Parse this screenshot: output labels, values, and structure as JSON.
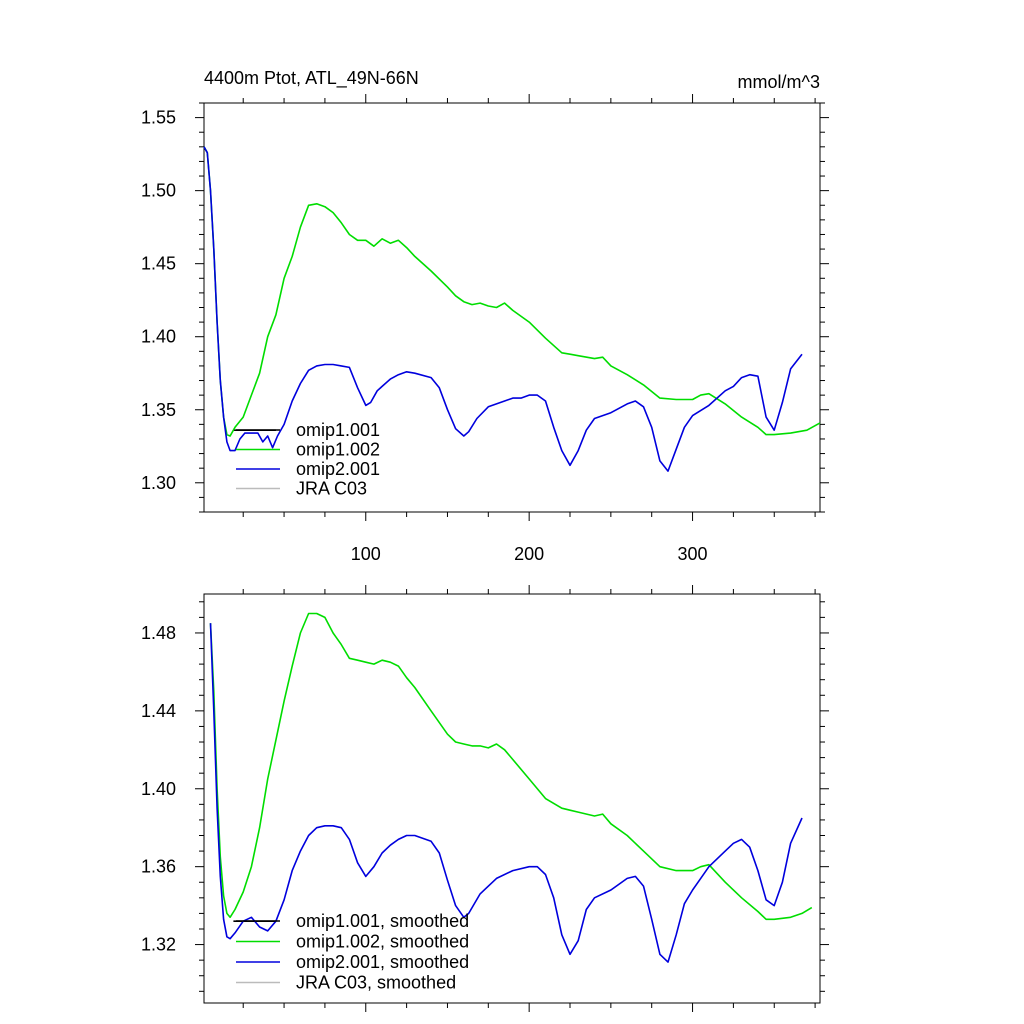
{
  "header": {
    "title": "4400m Ptot, ATL_49N-66N",
    "units": "mmol/m^3"
  },
  "colors": {
    "omip1_001": "#000000",
    "omip1_002": "#00dd00",
    "omip2_001": "#0000dd",
    "jra": "#bbbbbb",
    "axis": "#000000"
  },
  "chart_data": [
    {
      "type": "line",
      "title": "4400m Ptot, ATL_49N-66N",
      "units": "mmol/m^3",
      "xlim": [
        1,
        378
      ],
      "ylim": [
        1.28,
        1.56
      ],
      "x_ticks": [
        100,
        200,
        300
      ],
      "y_ticks": [
        1.3,
        1.35,
        1.4,
        1.45,
        1.5,
        1.55
      ],
      "y_tick_labels": [
        "1.30",
        "1.35",
        "1.40",
        "1.45",
        "1.50",
        "1.55"
      ],
      "x_tick_labels": [
        "100",
        "200",
        "300"
      ],
      "legend": [
        "omip1.001",
        "omip1.002",
        "omip2.001",
        "JRA C03"
      ],
      "legend_position": "bottom-left",
      "series": [
        {
          "name": "omip1.001",
          "x": [
            19,
            45
          ],
          "y": [
            1.336,
            1.336
          ]
        },
        {
          "name": "omip1.002",
          "x": [
            1,
            3,
            5,
            7,
            9,
            11,
            13,
            15,
            17,
            20,
            25,
            30,
            35,
            40,
            45,
            50,
            55,
            60,
            65,
            70,
            75,
            80,
            85,
            90,
            95,
            100,
            105,
            110,
            115,
            120,
            125,
            130,
            140,
            150,
            155,
            160,
            165,
            170,
            175,
            180,
            185,
            190,
            200,
            210,
            220,
            225,
            230,
            240,
            245,
            250,
            260,
            270,
            280,
            290,
            300,
            305,
            310,
            320,
            330,
            340,
            345,
            350,
            360,
            370,
            378
          ],
          "y": [
            1.53,
            1.526,
            1.5,
            1.46,
            1.41,
            1.37,
            1.345,
            1.333,
            1.332,
            1.338,
            1.345,
            1.36,
            1.375,
            1.4,
            1.415,
            1.44,
            1.455,
            1.475,
            1.49,
            1.491,
            1.489,
            1.485,
            1.478,
            1.47,
            1.466,
            1.466,
            1.462,
            1.467,
            1.464,
            1.466,
            1.461,
            1.455,
            1.445,
            1.434,
            1.428,
            1.424,
            1.422,
            1.423,
            1.421,
            1.42,
            1.423,
            1.418,
            1.41,
            1.399,
            1.389,
            1.388,
            1.387,
            1.385,
            1.386,
            1.38,
            1.374,
            1.367,
            1.358,
            1.357,
            1.357,
            1.36,
            1.361,
            1.354,
            1.345,
            1.338,
            1.333,
            1.333,
            1.334,
            1.336,
            1.341
          ]
        },
        {
          "name": "omip2.001",
          "x": [
            1,
            3,
            5,
            7,
            9,
            11,
            13,
            15,
            17,
            20,
            23,
            26,
            30,
            34,
            37,
            40,
            43,
            46,
            50,
            55,
            60,
            65,
            70,
            75,
            80,
            85,
            90,
            95,
            100,
            103,
            107,
            110,
            115,
            120,
            125,
            130,
            140,
            145,
            150,
            155,
            160,
            163,
            168,
            175,
            185,
            190,
            195,
            200,
            205,
            210,
            215,
            220,
            225,
            230,
            235,
            240,
            250,
            260,
            265,
            270,
            275,
            280,
            285,
            290,
            295,
            300,
            310,
            320,
            325,
            330,
            335,
            340,
            345,
            350,
            355,
            360,
            367
          ],
          "y": [
            1.53,
            1.526,
            1.5,
            1.46,
            1.41,
            1.37,
            1.345,
            1.328,
            1.322,
            1.322,
            1.33,
            1.334,
            1.334,
            1.334,
            1.328,
            1.332,
            1.324,
            1.332,
            1.34,
            1.356,
            1.368,
            1.377,
            1.38,
            1.381,
            1.381,
            1.38,
            1.379,
            1.365,
            1.353,
            1.355,
            1.363,
            1.366,
            1.371,
            1.374,
            1.376,
            1.375,
            1.372,
            1.365,
            1.35,
            1.337,
            1.332,
            1.335,
            1.344,
            1.352,
            1.356,
            1.358,
            1.358,
            1.36,
            1.36,
            1.356,
            1.338,
            1.322,
            1.312,
            1.322,
            1.336,
            1.344,
            1.348,
            1.354,
            1.356,
            1.352,
            1.338,
            1.315,
            1.308,
            1.323,
            1.338,
            1.346,
            1.353,
            1.363,
            1.366,
            1.372,
            1.374,
            1.373,
            1.345,
            1.336,
            1.355,
            1.378,
            1.388
          ]
        }
      ]
    },
    {
      "type": "line",
      "xlim": [
        1,
        378
      ],
      "ylim": [
        1.29,
        1.5
      ],
      "x_ticks": [
        100,
        200,
        300
      ],
      "y_ticks": [
        1.32,
        1.36,
        1.4,
        1.44,
        1.48
      ],
      "y_tick_labels": [
        "1.32",
        "1.36",
        "1.40",
        "1.44",
        "1.48"
      ],
      "legend": [
        "omip1.001, smoothed",
        "omip1.002, smoothed",
        "omip2.001, smoothed",
        "JRA C03, smoothed"
      ],
      "legend_position": "bottom-left",
      "series": [
        {
          "name": "omip1.001, smoothed",
          "x": [
            19,
            45
          ],
          "y": [
            1.332,
            1.332
          ]
        },
        {
          "name": "omip1.002, smoothed",
          "x": [
            5,
            7,
            9,
            11,
            13,
            15,
            17,
            20,
            25,
            30,
            35,
            40,
            45,
            50,
            55,
            60,
            65,
            70,
            75,
            80,
            85,
            90,
            95,
            100,
            105,
            110,
            115,
            120,
            125,
            130,
            140,
            150,
            155,
            160,
            165,
            170,
            175,
            180,
            185,
            190,
            200,
            210,
            220,
            225,
            230,
            240,
            245,
            250,
            260,
            270,
            280,
            290,
            300,
            305,
            310,
            320,
            330,
            340,
            345,
            350,
            360,
            367,
            373
          ],
          "y": [
            1.485,
            1.45,
            1.4,
            1.365,
            1.345,
            1.336,
            1.334,
            1.338,
            1.347,
            1.36,
            1.38,
            1.405,
            1.425,
            1.445,
            1.463,
            1.48,
            1.49,
            1.49,
            1.488,
            1.48,
            1.474,
            1.467,
            1.466,
            1.465,
            1.464,
            1.466,
            1.465,
            1.463,
            1.457,
            1.452,
            1.44,
            1.428,
            1.424,
            1.423,
            1.422,
            1.422,
            1.421,
            1.423,
            1.42,
            1.415,
            1.405,
            1.395,
            1.39,
            1.389,
            1.388,
            1.386,
            1.387,
            1.382,
            1.376,
            1.368,
            1.36,
            1.358,
            1.358,
            1.36,
            1.361,
            1.352,
            1.344,
            1.337,
            1.333,
            1.333,
            1.334,
            1.336,
            1.339
          ]
        },
        {
          "name": "omip2.001, smoothed",
          "x": [
            5,
            7,
            9,
            11,
            13,
            15,
            17,
            20,
            25,
            30,
            35,
            40,
            45,
            50,
            55,
            60,
            65,
            70,
            75,
            80,
            85,
            90,
            95,
            100,
            105,
            110,
            115,
            120,
            125,
            130,
            140,
            145,
            150,
            155,
            160,
            163,
            170,
            180,
            190,
            200,
            205,
            210,
            215,
            220,
            225,
            230,
            235,
            240,
            250,
            260,
            265,
            270,
            275,
            280,
            285,
            290,
            295,
            300,
            305,
            310,
            320,
            325,
            330,
            335,
            340,
            345,
            350,
            355,
            360,
            367
          ],
          "y": [
            1.485,
            1.44,
            1.39,
            1.355,
            1.333,
            1.324,
            1.323,
            1.326,
            1.332,
            1.334,
            1.329,
            1.327,
            1.332,
            1.343,
            1.358,
            1.368,
            1.376,
            1.38,
            1.381,
            1.381,
            1.38,
            1.374,
            1.362,
            1.355,
            1.36,
            1.367,
            1.371,
            1.374,
            1.376,
            1.376,
            1.373,
            1.367,
            1.353,
            1.34,
            1.334,
            1.336,
            1.346,
            1.354,
            1.358,
            1.36,
            1.36,
            1.356,
            1.344,
            1.325,
            1.315,
            1.322,
            1.338,
            1.344,
            1.348,
            1.354,
            1.355,
            1.35,
            1.333,
            1.315,
            1.311,
            1.325,
            1.341,
            1.348,
            1.354,
            1.36,
            1.368,
            1.372,
            1.374,
            1.37,
            1.358,
            1.343,
            1.34,
            1.352,
            1.372,
            1.385
          ]
        }
      ]
    }
  ]
}
